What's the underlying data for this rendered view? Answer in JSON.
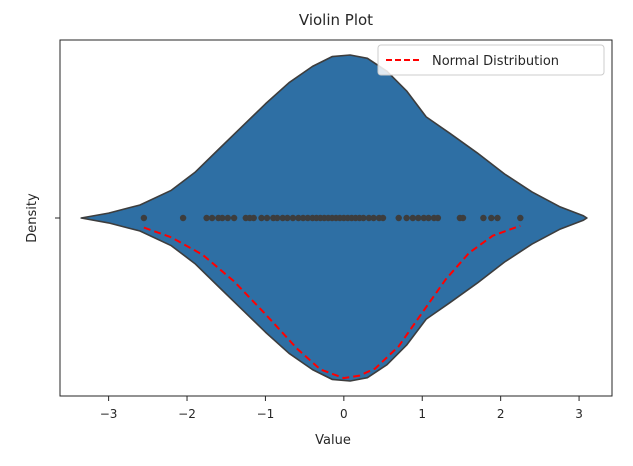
{
  "chart_data": {
    "type": "violin",
    "title": "Violin Plot",
    "xlabel": "Value",
    "ylabel": "Density",
    "xlim": [
      -3.62,
      3.42
    ],
    "xticks": [
      -3,
      -2,
      -1,
      0,
      1,
      2,
      3
    ],
    "xtick_labels": [
      "−3",
      "−2",
      "−1",
      "0",
      "1",
      "2",
      "3"
    ],
    "grid": false,
    "legend": {
      "placement": "top-right",
      "entries": [
        {
          "label": "Normal Distribution",
          "style": "dashed",
          "color": "#ff0000"
        }
      ]
    },
    "violin": {
      "color": "#2e6fa4",
      "edge_color": "#3d3d3d",
      "density_profile": {
        "x": [
          -3.35,
          -3.0,
          -2.6,
          -2.2,
          -1.9,
          -1.6,
          -1.3,
          -1.0,
          -0.7,
          -0.4,
          -0.15,
          0.08,
          0.3,
          0.55,
          0.8,
          1.05,
          1.35,
          1.7,
          2.05,
          2.4,
          2.75,
          3.05,
          3.1
        ],
        "half_width": [
          0.0,
          0.03,
          0.08,
          0.17,
          0.28,
          0.42,
          0.56,
          0.7,
          0.83,
          0.93,
          0.99,
          1.0,
          0.98,
          0.9,
          0.78,
          0.62,
          0.52,
          0.4,
          0.27,
          0.16,
          0.07,
          0.015,
          0.0
        ]
      }
    },
    "points": {
      "color": "#3d3d3d",
      "x": [
        -2.55,
        -2.05,
        -1.75,
        -1.68,
        -1.6,
        -1.55,
        -1.48,
        -1.4,
        -1.25,
        -1.2,
        -1.15,
        -1.05,
        -0.98,
        -0.9,
        -0.85,
        -0.78,
        -0.72,
        -0.65,
        -0.58,
        -0.52,
        -0.46,
        -0.4,
        -0.35,
        -0.3,
        -0.25,
        -0.2,
        -0.15,
        -0.1,
        -0.05,
        0.0,
        0.05,
        0.1,
        0.15,
        0.2,
        0.25,
        0.32,
        0.38,
        0.45,
        0.5,
        0.7,
        0.8,
        0.88,
        0.95,
        1.02,
        1.08,
        1.15,
        1.2,
        1.48,
        1.52,
        1.78,
        1.88,
        1.96,
        2.25
      ]
    },
    "series": [
      {
        "name": "Normal Distribution",
        "x": [
          -2.55,
          -2.2,
          -1.8,
          -1.4,
          -1.0,
          -0.6,
          -0.3,
          0.0,
          0.2,
          0.4,
          0.7,
          1.0,
          1.3,
          1.6,
          1.9,
          2.25
        ],
        "y": [
          0.046,
          0.093,
          0.177,
          0.305,
          0.462,
          0.627,
          0.728,
          0.77,
          0.758,
          0.724,
          0.617,
          0.455,
          0.295,
          0.167,
          0.085,
          0.037
        ]
      }
    ]
  }
}
